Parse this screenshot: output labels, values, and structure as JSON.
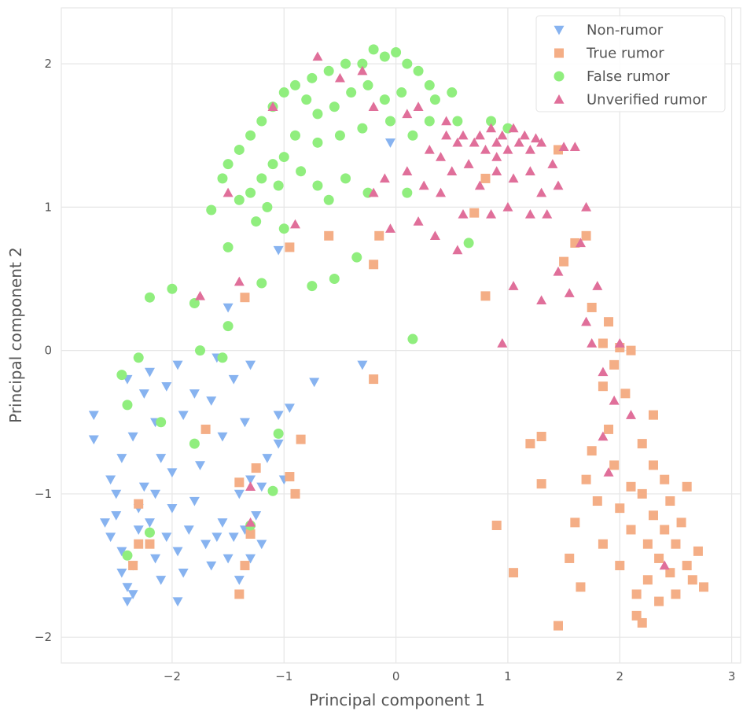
{
  "chart_data": {
    "type": "scatter",
    "title": "",
    "xlabel": "Principal component 1",
    "ylabel": "Principal component 2",
    "xlim": [
      -2.99,
      3.08
    ],
    "ylim": [
      -2.18,
      2.39
    ],
    "xticks": [
      -2,
      -1,
      0,
      1,
      2,
      3
    ],
    "yticks": [
      -2,
      -1,
      0,
      1,
      2
    ],
    "xtick_labels": [
      "−2",
      "−1",
      "0",
      "1",
      "2",
      "3"
    ],
    "ytick_labels": [
      "−2",
      "−1",
      "0",
      "1",
      "2"
    ],
    "grid": true,
    "legend_position": "top-right",
    "series": [
      {
        "name": "Non-rumor",
        "marker": "triangle-down",
        "color": "#87b3f0",
        "points": [
          [
            -2.7,
            -0.45
          ],
          [
            -2.7,
            -0.62
          ],
          [
            -2.55,
            -0.9
          ],
          [
            -2.5,
            -1.0
          ],
          [
            -2.5,
            -1.15
          ],
          [
            -2.55,
            -1.3
          ],
          [
            -2.45,
            -1.4
          ],
          [
            -2.45,
            -1.55
          ],
          [
            -2.4,
            -1.65
          ],
          [
            -2.4,
            -1.75
          ],
          [
            -2.35,
            -1.7
          ],
          [
            -2.35,
            -1.5
          ],
          [
            -2.3,
            -1.25
          ],
          [
            -2.3,
            -1.1
          ],
          [
            -2.25,
            -0.95
          ],
          [
            -2.2,
            -1.2
          ],
          [
            -2.15,
            -1.45
          ],
          [
            -2.1,
            -1.6
          ],
          [
            -2.05,
            -1.3
          ],
          [
            -2.0,
            -1.1
          ],
          [
            -2.0,
            -0.85
          ],
          [
            -1.95,
            -1.4
          ],
          [
            -1.9,
            -1.55
          ],
          [
            -1.85,
            -1.25
          ],
          [
            -1.8,
            -1.05
          ],
          [
            -1.75,
            -0.8
          ],
          [
            -1.7,
            -1.35
          ],
          [
            -1.65,
            -1.5
          ],
          [
            -1.6,
            -1.3
          ],
          [
            -1.55,
            -1.2
          ],
          [
            -1.5,
            -1.45
          ],
          [
            -1.45,
            -1.3
          ],
          [
            -1.4,
            -1.6
          ],
          [
            -1.4,
            -1.0
          ],
          [
            -1.35,
            -1.25
          ],
          [
            -1.3,
            -1.45
          ],
          [
            -1.25,
            -1.15
          ],
          [
            -1.2,
            -0.95
          ],
          [
            -1.2,
            -1.35
          ],
          [
            -1.3,
            -0.9
          ],
          [
            -2.6,
            -1.2
          ],
          [
            -2.45,
            -0.75
          ],
          [
            -2.35,
            -0.6
          ],
          [
            -2.25,
            -0.3
          ],
          [
            -2.2,
            -0.15
          ],
          [
            -2.15,
            -0.5
          ],
          [
            -2.05,
            -0.25
          ],
          [
            -1.95,
            -0.1
          ],
          [
            -1.9,
            -0.45
          ],
          [
            -1.8,
            -0.3
          ],
          [
            -1.65,
            -0.35
          ],
          [
            -1.6,
            -0.05
          ],
          [
            -1.55,
            -0.6
          ],
          [
            -1.45,
            -0.2
          ],
          [
            -1.35,
            -0.5
          ],
          [
            -1.3,
            -0.1
          ],
          [
            -1.15,
            -0.75
          ],
          [
            -1.05,
            -0.65
          ],
          [
            -1.05,
            -0.45
          ],
          [
            -0.95,
            -0.4
          ],
          [
            -1.0,
            -0.9
          ],
          [
            -0.73,
            -0.22
          ],
          [
            -0.3,
            -0.1
          ],
          [
            -1.5,
            0.3
          ],
          [
            -1.05,
            0.7
          ],
          [
            -0.05,
            1.45
          ],
          [
            -2.1,
            -0.75
          ],
          [
            -1.95,
            -1.75
          ],
          [
            -2.15,
            -1.0
          ],
          [
            -2.4,
            -0.2
          ]
        ]
      },
      {
        "name": "True rumor",
        "marker": "square",
        "color": "#f4ae86",
        "points": [
          [
            1.6,
            -1.2
          ],
          [
            1.7,
            -0.9
          ],
          [
            1.75,
            -0.7
          ],
          [
            1.8,
            -1.05
          ],
          [
            1.85,
            -1.35
          ],
          [
            1.9,
            -0.55
          ],
          [
            1.95,
            -0.8
          ],
          [
            2.0,
            -1.1
          ],
          [
            2.0,
            -1.5
          ],
          [
            2.05,
            -0.3
          ],
          [
            2.1,
            -0.95
          ],
          [
            2.1,
            -1.25
          ],
          [
            2.15,
            -1.7
          ],
          [
            2.2,
            -0.65
          ],
          [
            2.2,
            -1.0
          ],
          [
            2.25,
            -1.35
          ],
          [
            2.25,
            -1.6
          ],
          [
            2.3,
            -0.8
          ],
          [
            2.3,
            -1.15
          ],
          [
            2.35,
            -1.45
          ],
          [
            2.35,
            -1.75
          ],
          [
            2.4,
            -0.9
          ],
          [
            2.4,
            -1.25
          ],
          [
            2.45,
            -1.55
          ],
          [
            2.45,
            -1.05
          ],
          [
            2.5,
            -1.35
          ],
          [
            2.5,
            -1.7
          ],
          [
            2.55,
            -1.2
          ],
          [
            2.6,
            -1.5
          ],
          [
            2.6,
            -0.95
          ],
          [
            2.65,
            -1.6
          ],
          [
            2.7,
            -1.4
          ],
          [
            2.75,
            -1.65
          ],
          [
            2.3,
            -0.45
          ],
          [
            2.2,
            -1.9
          ],
          [
            2.15,
            -1.85
          ],
          [
            1.65,
            -1.65
          ],
          [
            1.55,
            -1.45
          ],
          [
            1.85,
            -0.25
          ],
          [
            1.95,
            -0.1
          ],
          [
            2.1,
            0.0
          ],
          [
            1.9,
            0.2
          ],
          [
            2.0,
            0.02
          ],
          [
            1.7,
            0.8
          ],
          [
            1.6,
            0.75
          ],
          [
            1.5,
            0.62
          ],
          [
            1.75,
            0.3
          ],
          [
            1.85,
            0.05
          ],
          [
            0.8,
            0.38
          ],
          [
            0.7,
            0.96
          ],
          [
            0.8,
            1.2
          ],
          [
            1.45,
            1.4
          ],
          [
            -0.6,
            0.8
          ],
          [
            -0.2,
            0.6
          ],
          [
            -0.15,
            0.8
          ],
          [
            -0.95,
            0.72
          ],
          [
            -1.35,
            0.37
          ],
          [
            -0.2,
            -0.2
          ],
          [
            -0.85,
            -0.62
          ],
          [
            -0.9,
            -1.0
          ],
          [
            -0.95,
            -0.88
          ],
          [
            0.9,
            -1.22
          ],
          [
            1.05,
            -1.55
          ],
          [
            1.45,
            -1.92
          ],
          [
            1.3,
            -0.93
          ],
          [
            1.2,
            -0.65
          ],
          [
            1.3,
            -0.6
          ],
          [
            -2.3,
            -1.07
          ],
          [
            -2.3,
            -1.35
          ],
          [
            -2.2,
            -1.35
          ],
          [
            -2.35,
            -1.5
          ],
          [
            -1.4,
            -1.7
          ],
          [
            -1.35,
            -1.5
          ],
          [
            -1.3,
            -1.28
          ],
          [
            -1.7,
            -0.55
          ],
          [
            -1.4,
            -0.92
          ],
          [
            -1.25,
            -0.82
          ]
        ]
      },
      {
        "name": "False rumor",
        "marker": "circle",
        "color": "#90ee7e",
        "points": [
          [
            -0.2,
            2.1
          ],
          [
            -0.1,
            2.05
          ],
          [
            0.0,
            2.08
          ],
          [
            0.1,
            2.0
          ],
          [
            0.2,
            1.95
          ],
          [
            -0.3,
            2.0
          ],
          [
            -0.45,
            2.0
          ],
          [
            -0.6,
            1.95
          ],
          [
            -0.75,
            1.9
          ],
          [
            -0.9,
            1.85
          ],
          [
            -1.0,
            1.8
          ],
          [
            -1.1,
            1.7
          ],
          [
            -1.2,
            1.6
          ],
          [
            -1.3,
            1.5
          ],
          [
            -1.4,
            1.4
          ],
          [
            -1.5,
            1.3
          ],
          [
            -1.55,
            1.2
          ],
          [
            -0.8,
            1.75
          ],
          [
            -0.7,
            1.65
          ],
          [
            -0.55,
            1.7
          ],
          [
            -0.4,
            1.8
          ],
          [
            -0.25,
            1.85
          ],
          [
            -0.1,
            1.75
          ],
          [
            0.05,
            1.8
          ],
          [
            0.3,
            1.85
          ],
          [
            0.35,
            1.75
          ],
          [
            0.5,
            1.8
          ],
          [
            0.55,
            1.6
          ],
          [
            0.3,
            1.6
          ],
          [
            0.15,
            1.5
          ],
          [
            -0.05,
            1.6
          ],
          [
            -0.3,
            1.55
          ],
          [
            -0.5,
            1.5
          ],
          [
            -0.7,
            1.45
          ],
          [
            -0.9,
            1.5
          ],
          [
            -1.0,
            1.35
          ],
          [
            -1.1,
            1.3
          ],
          [
            -1.2,
            1.2
          ],
          [
            -1.3,
            1.1
          ],
          [
            -1.05,
            1.15
          ],
          [
            -0.85,
            1.25
          ],
          [
            -0.7,
            1.15
          ],
          [
            -0.45,
            1.2
          ],
          [
            -0.25,
            1.1
          ],
          [
            -0.6,
            1.05
          ],
          [
            -1.15,
            1.0
          ],
          [
            -1.0,
            0.85
          ],
          [
            -1.25,
            0.9
          ],
          [
            -1.4,
            1.05
          ],
          [
            0.1,
            1.1
          ],
          [
            0.85,
            1.6
          ],
          [
            1.0,
            1.55
          ],
          [
            -1.65,
            0.98
          ],
          [
            -1.5,
            0.72
          ],
          [
            -1.2,
            0.47
          ],
          [
            -0.75,
            0.45
          ],
          [
            -0.55,
            0.5
          ],
          [
            -0.35,
            0.65
          ],
          [
            0.65,
            0.75
          ],
          [
            0.15,
            0.08
          ],
          [
            -2.2,
            0.37
          ],
          [
            -2.0,
            0.43
          ],
          [
            -1.8,
            0.33
          ],
          [
            -1.5,
            0.17
          ],
          [
            -1.75,
            0.0
          ],
          [
            -1.55,
            -0.05
          ],
          [
            -2.3,
            -0.05
          ],
          [
            -2.45,
            -0.17
          ],
          [
            -2.4,
            -0.38
          ],
          [
            -2.1,
            -0.5
          ],
          [
            -1.05,
            -0.58
          ],
          [
            -1.8,
            -0.65
          ],
          [
            -1.1,
            -0.98
          ],
          [
            -2.2,
            -1.27
          ],
          [
            -2.4,
            -1.43
          ],
          [
            -1.3,
            -1.22
          ]
        ]
      },
      {
        "name": "Unverified rumor",
        "marker": "triangle-up",
        "color": "#e06f9a",
        "points": [
          [
            0.7,
            1.45
          ],
          [
            0.75,
            1.5
          ],
          [
            0.8,
            1.4
          ],
          [
            0.85,
            1.55
          ],
          [
            0.9,
            1.45
          ],
          [
            0.95,
            1.5
          ],
          [
            1.0,
            1.4
          ],
          [
            1.05,
            1.55
          ],
          [
            1.1,
            1.45
          ],
          [
            1.15,
            1.5
          ],
          [
            1.2,
            1.4
          ],
          [
            1.25,
            1.48
          ],
          [
            1.3,
            1.45
          ],
          [
            0.6,
            1.5
          ],
          [
            0.55,
            1.45
          ],
          [
            0.45,
            1.5
          ],
          [
            0.4,
            1.35
          ],
          [
            0.3,
            1.4
          ],
          [
            0.5,
            1.25
          ],
          [
            0.65,
            1.3
          ],
          [
            0.75,
            1.15
          ],
          [
            0.9,
            1.25
          ],
          [
            1.05,
            1.2
          ],
          [
            1.2,
            1.25
          ],
          [
            1.3,
            1.1
          ],
          [
            1.4,
            1.3
          ],
          [
            1.5,
            1.42
          ],
          [
            1.6,
            1.42
          ],
          [
            1.45,
            1.15
          ],
          [
            1.35,
            0.95
          ],
          [
            1.2,
            0.95
          ],
          [
            1.0,
            1.0
          ],
          [
            0.85,
            0.95
          ],
          [
            0.6,
            0.95
          ],
          [
            0.4,
            1.1
          ],
          [
            0.25,
            1.15
          ],
          [
            0.1,
            1.25
          ],
          [
            -0.1,
            1.2
          ],
          [
            -0.2,
            1.1
          ],
          [
            0.2,
            0.9
          ],
          [
            -0.05,
            0.85
          ],
          [
            0.35,
            0.8
          ],
          [
            0.55,
            0.7
          ],
          [
            1.7,
            1.0
          ],
          [
            1.65,
            0.75
          ],
          [
            1.45,
            0.55
          ],
          [
            1.55,
            0.4
          ],
          [
            1.3,
            0.35
          ],
          [
            1.05,
            0.45
          ],
          [
            1.7,
            0.2
          ],
          [
            1.8,
            0.45
          ],
          [
            1.75,
            0.05
          ],
          [
            1.85,
            -0.15
          ],
          [
            1.95,
            -0.35
          ],
          [
            2.0,
            0.05
          ],
          [
            0.95,
            0.05
          ],
          [
            0.2,
            1.7
          ],
          [
            0.1,
            1.65
          ],
          [
            -0.2,
            1.7
          ],
          [
            -0.5,
            1.9
          ],
          [
            -0.7,
            2.05
          ],
          [
            -0.3,
            1.95
          ],
          [
            -1.1,
            1.7
          ],
          [
            -1.5,
            1.1
          ],
          [
            -1.4,
            0.48
          ],
          [
            -1.75,
            0.38
          ],
          [
            -0.9,
            0.88
          ],
          [
            -1.3,
            -0.95
          ],
          [
            -1.3,
            -1.2
          ],
          [
            2.4,
            -1.5
          ],
          [
            1.9,
            -0.85
          ],
          [
            1.85,
            -0.6
          ],
          [
            2.1,
            -0.45
          ],
          [
            0.45,
            1.6
          ],
          [
            0.9,
            1.35
          ]
        ]
      }
    ]
  }
}
